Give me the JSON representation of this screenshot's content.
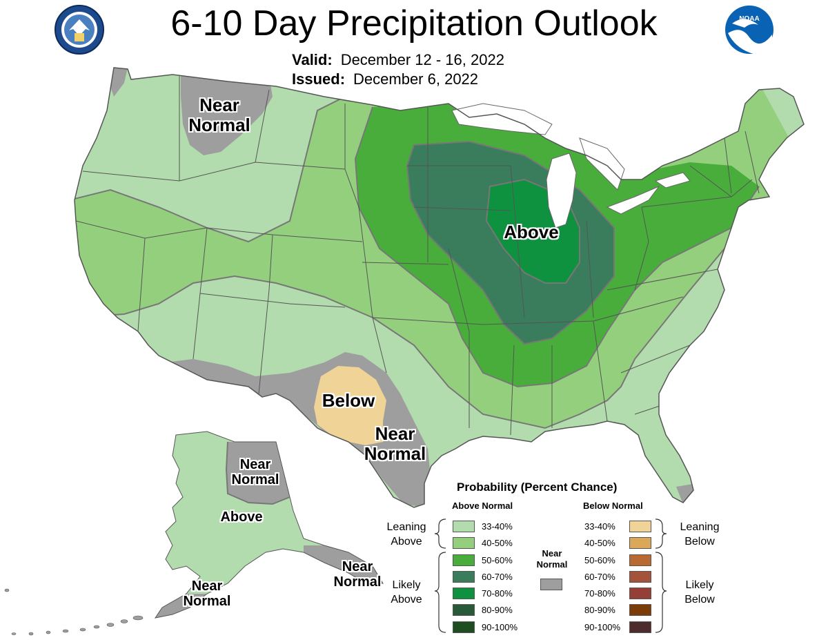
{
  "header": {
    "title": "6-10 Day Precipitation Outlook",
    "valid_label": "Valid:",
    "valid_value": "December 12 - 16, 2022",
    "issued_label": "Issued:",
    "issued_value": "December 6, 2022"
  },
  "logos": {
    "left": "department-of-commerce-seal",
    "right": "noaa-logo",
    "noaa_text": "NOAA"
  },
  "map_labels": {
    "nw_near_normal": [
      "Near",
      "Normal"
    ],
    "midwest_above": "Above",
    "tx_below": "Below",
    "tx_near_normal": [
      "Near",
      "Normal"
    ],
    "ak_near_normal_north": [
      "Near",
      "Normal"
    ],
    "ak_above": "Above",
    "ak_near_normal_south": [
      "Near",
      "Normal"
    ],
    "ak_near_normal_east": [
      "Near",
      "Normal"
    ]
  },
  "colors": {
    "above_33_40": "#b3dcae",
    "above_40_50": "#94cf7e",
    "above_50_60": "#48ad3a",
    "above_60_70": "#3a7d5c",
    "above_70_80": "#0e9240",
    "above_80_90": "#285a3a",
    "above_90_100": "#1f4d22",
    "near_normal": "#9e9e9e",
    "below_33_40": "#f0d396",
    "below_40_50": "#dba85a",
    "below_50_60": "#b86a32",
    "below_60_70": "#a3533a",
    "below_70_80": "#954037",
    "below_80_90": "#7b3c07",
    "below_90_100": "#4c2c2c",
    "water": "#ffffff",
    "border": "#666666"
  },
  "legend": {
    "title": "Probability (Percent Chance)",
    "above_header": "Above Normal",
    "below_header": "Below Normal",
    "above_items": [
      "33-40%",
      "40-50%",
      "50-60%",
      "60-70%",
      "70-80%",
      "80-90%",
      "90-100%"
    ],
    "below_items": [
      "33-40%",
      "40-50%",
      "50-60%",
      "60-70%",
      "70-80%",
      "80-90%",
      "90-100%"
    ],
    "leaning_above": [
      "Leaning",
      "Above"
    ],
    "likely_above": [
      "Likely",
      "Above"
    ],
    "leaning_below": [
      "Leaning",
      "Below"
    ],
    "likely_below": [
      "Likely",
      "Below"
    ],
    "near_normal": [
      "Near",
      "Normal"
    ]
  }
}
